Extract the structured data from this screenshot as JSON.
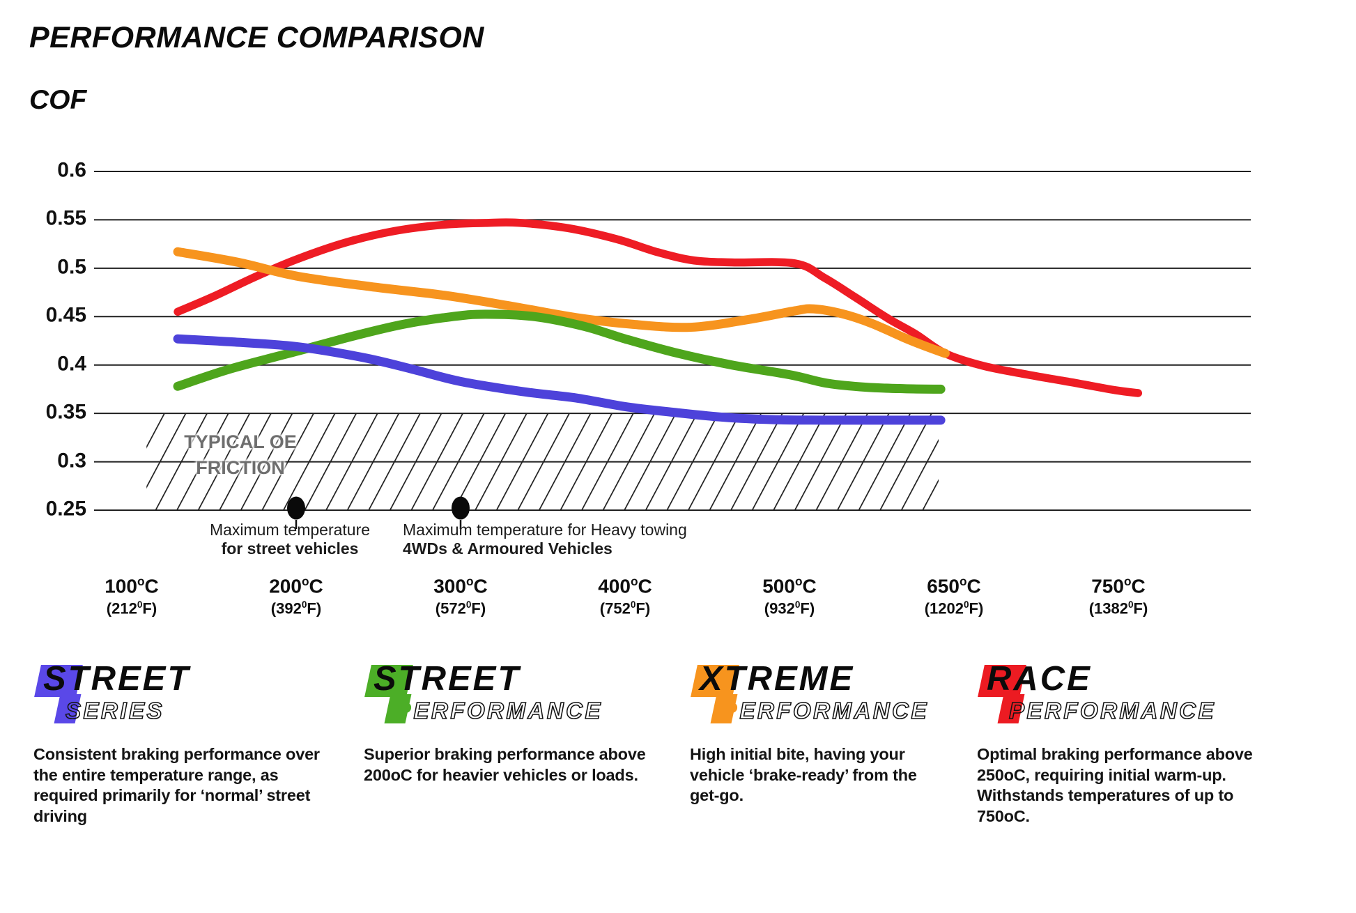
{
  "title": "PERFORMANCE COMPARISON",
  "chart_data": {
    "type": "line",
    "ylabel": "COF",
    "y_ticks": [
      "0.6",
      "0.55",
      "0.5",
      "0.45",
      "0.4",
      "0.35",
      "0.3",
      "0.25"
    ],
    "y_range": [
      0.25,
      0.6
    ],
    "grid": "horizontal",
    "x_tick_temps": [
      100,
      200,
      300,
      400,
      500,
      650,
      750
    ],
    "x_ticks": [
      {
        "c": "100",
        "f": "(212"
      },
      {
        "c": "200",
        "f": "(392"
      },
      {
        "c": "300",
        "f": "(572"
      },
      {
        "c": "400",
        "f": "(752"
      },
      {
        "c": "500",
        "f": "(932"
      },
      {
        "c": "650",
        "f": "(1202"
      },
      {
        "c": "750",
        "f": "(1382"
      }
    ],
    "deg_sup_c": "o",
    "unit_c": "C",
    "deg_sup_f": "0",
    "unit_f": "F)",
    "oe_region": {
      "label_line1": "TYPICAL OE",
      "label_line2": "FRICTION",
      "cof_top": 0.35,
      "cof_bottom": 0.25,
      "temp_start": 109,
      "temp_end": 636
    },
    "annotations": [
      {
        "temp_c": 200,
        "line1": "Maximum temperature",
        "line2": "for street vehicles"
      },
      {
        "temp_c": 300,
        "line1": "Maximum temperature for Heavy towing",
        "line2": "4WDs & Armoured Vehicles"
      }
    ],
    "series": [
      {
        "name": "Street Series",
        "color": "#4D42DA",
        "width": 13,
        "points": [
          [
            128,
            0.427
          ],
          [
            160,
            0.424
          ],
          [
            200,
            0.419
          ],
          [
            240,
            0.408
          ],
          [
            270,
            0.396
          ],
          [
            300,
            0.383
          ],
          [
            340,
            0.372
          ],
          [
            370,
            0.366
          ],
          [
            400,
            0.357
          ],
          [
            430,
            0.351
          ],
          [
            460,
            0.346
          ],
          [
            490,
            0.3435
          ],
          [
            530,
            0.343
          ],
          [
            580,
            0.343
          ],
          [
            638,
            0.343
          ]
        ]
      },
      {
        "name": "Street Performance",
        "color": "#4EA51C",
        "width": 13,
        "points": [
          [
            128,
            0.378
          ],
          [
            160,
            0.396
          ],
          [
            200,
            0.414
          ],
          [
            235,
            0.43
          ],
          [
            265,
            0.442
          ],
          [
            295,
            0.45
          ],
          [
            315,
            0.4525
          ],
          [
            345,
            0.45
          ],
          [
            375,
            0.44
          ],
          [
            400,
            0.427
          ],
          [
            430,
            0.413
          ],
          [
            465,
            0.4
          ],
          [
            500,
            0.39
          ],
          [
            535,
            0.381
          ],
          [
            570,
            0.377
          ],
          [
            605,
            0.3755
          ],
          [
            638,
            0.375
          ]
        ]
      },
      {
        "name": "Xtreme Performance",
        "color": "#F7941E",
        "width": 13,
        "points": [
          [
            128,
            0.517
          ],
          [
            165,
            0.506
          ],
          [
            200,
            0.492
          ],
          [
            245,
            0.481
          ],
          [
            290,
            0.472
          ],
          [
            330,
            0.461
          ],
          [
            370,
            0.449
          ],
          [
            405,
            0.442
          ],
          [
            440,
            0.439
          ],
          [
            475,
            0.447
          ],
          [
            505,
            0.456
          ],
          [
            522,
            0.458
          ],
          [
            548,
            0.453
          ],
          [
            575,
            0.443
          ],
          [
            605,
            0.428
          ],
          [
            625,
            0.419
          ],
          [
            642,
            0.412
          ]
        ]
      },
      {
        "name": "Race Performance",
        "color": "#EE1C24",
        "width": 11.5,
        "points": [
          [
            128,
            0.455
          ],
          [
            150,
            0.471
          ],
          [
            175,
            0.491
          ],
          [
            200,
            0.509
          ],
          [
            230,
            0.5265
          ],
          [
            260,
            0.5385
          ],
          [
            290,
            0.545
          ],
          [
            315,
            0.5468
          ],
          [
            335,
            0.547
          ],
          [
            365,
            0.5415
          ],
          [
            395,
            0.53
          ],
          [
            420,
            0.5165
          ],
          [
            442,
            0.508
          ],
          [
            465,
            0.506
          ],
          [
            505,
            0.505
          ],
          [
            532,
            0.49
          ],
          [
            560,
            0.47
          ],
          [
            590,
            0.448
          ],
          [
            615,
            0.432
          ],
          [
            642,
            0.412
          ],
          [
            668,
            0.399
          ],
          [
            695,
            0.39
          ],
          [
            722,
            0.382
          ],
          [
            748,
            0.374
          ],
          [
            762,
            0.371
          ]
        ]
      }
    ]
  },
  "legends": [
    {
      "word1": "STREET",
      "word2_first": "S",
      "word2_rest": "ERIES",
      "color": "#5A48E8",
      "fill_first": false,
      "description": "Consistent braking performance over the entire temperature range, as required primarily for ‘normal’ street driving"
    },
    {
      "word1": "STREET",
      "word2_first": "P",
      "word2_rest": "ERFORMANCE",
      "color": "#4CAE27",
      "fill_first": true,
      "description": "Superior braking performance above 200oC for heavier vehicles or loads."
    },
    {
      "word1": "XTREME",
      "word2_first": "P",
      "word2_rest": "ERFORMANCE",
      "color": "#F7941E",
      "fill_first": true,
      "description": "High initial bite, having your vehicle ‘brake-ready’ from the get-go."
    },
    {
      "word1": "RACE",
      "word2_first": "P",
      "word2_rest": "ERFORMANCE",
      "color": "#EC1B22",
      "fill_first": false,
      "description": "Optimal braking performance above 250oC, requiring initial warm-up. Withstands temperatures of up to 750oC."
    }
  ]
}
